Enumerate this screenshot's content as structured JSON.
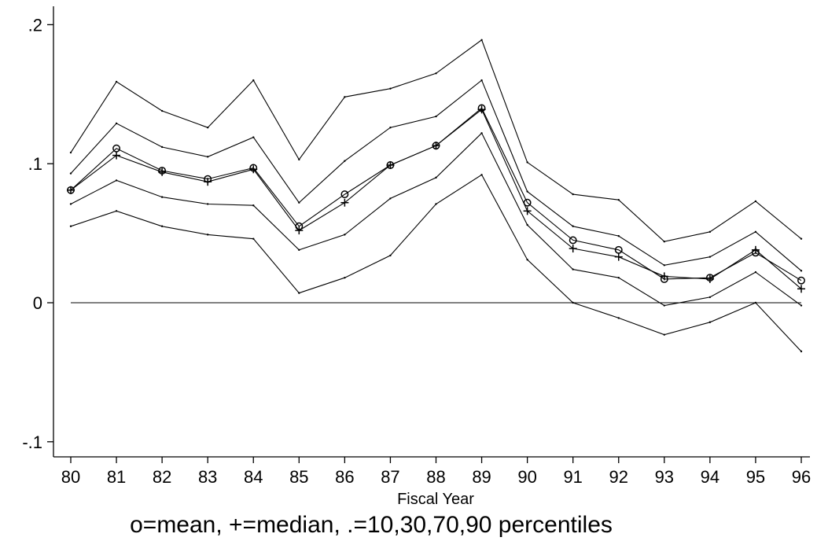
{
  "chart_data": {
    "type": "line",
    "title": "",
    "xlabel": "Fiscal Year",
    "ylabel": "",
    "note": "o=mean, +=median, .=10,30,70,90 percentiles",
    "x": [
      "80",
      "81",
      "82",
      "83",
      "84",
      "85",
      "86",
      "87",
      "88",
      "89",
      "90",
      "91",
      "92",
      "93",
      "94",
      "95",
      "96"
    ],
    "xlim": [
      80,
      96
    ],
    "ylim": [
      -0.11,
      0.21
    ],
    "yticks": [
      -0.1,
      0,
      0.1,
      0.2
    ],
    "ytick_labels": [
      "-.1",
      "0",
      ".1",
      ".2"
    ],
    "reference_line": 0,
    "grid": false,
    "series": [
      {
        "name": "",
        "marker": "dot",
        "values": [
          0.055,
          0.066,
          0.055,
          0.049,
          0.046,
          0.007,
          0.018,
          0.034,
          0.071,
          0.092,
          0.031,
          0.0,
          -0.011,
          -0.023,
          -0.014,
          0.0,
          -0.035
        ]
      },
      {
        "name": "",
        "marker": "dot",
        "values": [
          0.071,
          0.088,
          0.076,
          0.071,
          0.07,
          0.038,
          0.049,
          0.075,
          0.09,
          0.122,
          0.056,
          0.024,
          0.018,
          -0.002,
          0.004,
          0.022,
          -0.002
        ]
      },
      {
        "name": "",
        "marker": "circle",
        "values": [
          0.081,
          0.111,
          0.095,
          0.089,
          0.097,
          0.055,
          0.078,
          0.099,
          0.113,
          0.14,
          0.072,
          0.045,
          0.038,
          0.017,
          0.018,
          0.036,
          0.016
        ]
      },
      {
        "name": "",
        "marker": "plus",
        "values": [
          0.081,
          0.106,
          0.094,
          0.087,
          0.096,
          0.052,
          0.072,
          0.099,
          0.113,
          0.139,
          0.066,
          0.039,
          0.033,
          0.019,
          0.017,
          0.038,
          0.01
        ]
      },
      {
        "name": "",
        "marker": "dot",
        "values": [
          0.093,
          0.129,
          0.112,
          0.105,
          0.119,
          0.072,
          0.102,
          0.126,
          0.134,
          0.16,
          0.08,
          0.055,
          0.048,
          0.027,
          0.033,
          0.051,
          0.023
        ]
      },
      {
        "name": "",
        "marker": "dot",
        "values": [
          0.108,
          0.159,
          0.138,
          0.126,
          0.16,
          0.103,
          0.148,
          0.154,
          0.165,
          0.189,
          0.101,
          0.078,
          0.074,
          0.044,
          0.051,
          0.073,
          0.046
        ]
      }
    ]
  }
}
